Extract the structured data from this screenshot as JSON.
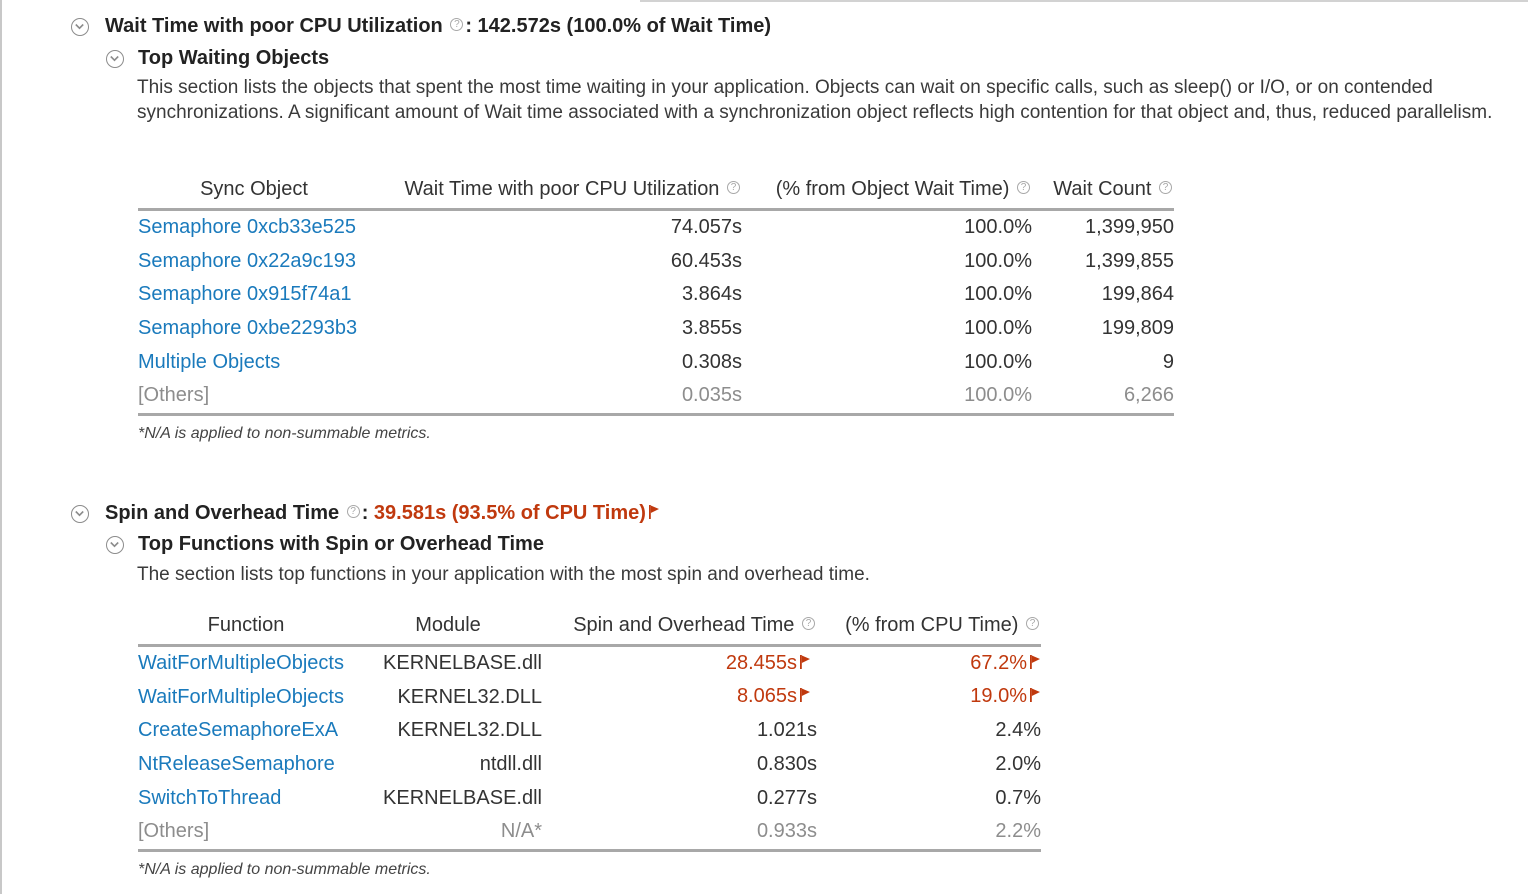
{
  "wait_section": {
    "title": "Wait Time with poor CPU Utilization",
    "value": ": 142.572s (100.0% of Wait Time)",
    "sub_title": "Top Waiting Objects",
    "description": "This section lists the objects that spent the most time waiting in your application. Objects can wait on specific calls, such as sleep() or I/O, or on contended synchronizations. A significant amount of Wait time associated with a synchronization object reflects high contention for that object and, thus, reduced parallelism.",
    "columns": [
      "Sync Object",
      "Wait Time with poor CPU Utilization",
      "(% from Object Wait Time)",
      "Wait Count"
    ],
    "rows": [
      {
        "name": "Semaphore 0xcb33e525",
        "wait": "74.057s",
        "pct": "100.0%",
        "count": "1,399,950"
      },
      {
        "name": "Semaphore 0x22a9c193",
        "wait": "60.453s",
        "pct": "100.0%",
        "count": "1,399,855"
      },
      {
        "name": "Semaphore 0x915f74a1",
        "wait": "3.864s",
        "pct": "100.0%",
        "count": "199,864"
      },
      {
        "name": "Semaphore 0xbe2293b3",
        "wait": "3.855s",
        "pct": "100.0%",
        "count": "199,809"
      },
      {
        "name": "Multiple Objects",
        "wait": "0.308s",
        "pct": "100.0%",
        "count": "9"
      },
      {
        "name": "[Others]",
        "wait": "0.035s",
        "pct": "100.0%",
        "count": "6,266"
      }
    ],
    "note": "*N/A is applied to non-summable metrics."
  },
  "spin_section": {
    "title": "Spin and Overhead Time",
    "colon": ": ",
    "value": "39.581s (93.5% of CPU Time)",
    "sub_title": "Top Functions with Spin or Overhead Time",
    "description": "The section lists top functions in your application with the most spin and overhead time.",
    "columns": [
      "Function",
      "Module",
      "Spin and Overhead Time",
      "(% from CPU Time)"
    ],
    "rows": [
      {
        "function": "WaitForMultipleObjects",
        "module": "KERNELBASE.dll",
        "time": "28.455s",
        "pct": "67.2%"
      },
      {
        "function": "WaitForMultipleObjects",
        "module": "KERNEL32.DLL",
        "time": "8.065s",
        "pct": "19.0%"
      },
      {
        "function": "CreateSemaphoreExA",
        "module": "KERNEL32.DLL",
        "time": "1.021s",
        "pct": "2.4%"
      },
      {
        "function": "NtReleaseSemaphore",
        "module": "ntdll.dll",
        "time": "0.830s",
        "pct": "2.0%"
      },
      {
        "function": "SwitchToThread",
        "module": "KERNELBASE.dll",
        "time": "0.277s",
        "pct": "0.7%"
      },
      {
        "function": "[Others]",
        "module": "N/A*",
        "time": "0.933s",
        "pct": "2.2%"
      }
    ],
    "note": "*N/A is applied to non-summable metrics."
  },
  "help_glyph": "?",
  "colors": {
    "link": "#1a7abc",
    "warning": "#c0390e",
    "muted": "#8d8d8d"
  }
}
